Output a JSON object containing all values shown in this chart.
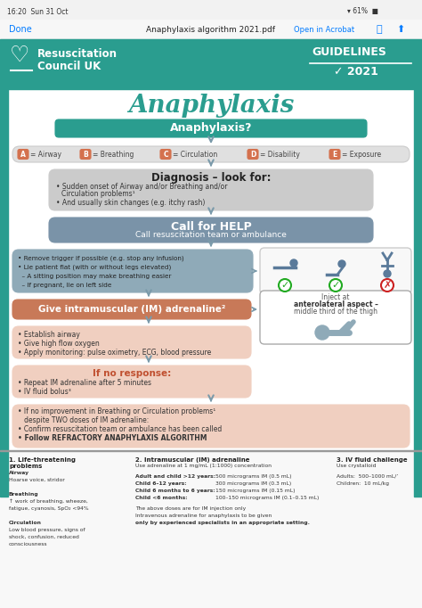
{
  "bg_color": "#ffffff",
  "teal_color": "#2a9d8f",
  "dark_teal": "#1d7a6e",
  "title": "Anaphylaxis",
  "arrow_color": "#7a9aaa",
  "abcde_items": [
    {
      "letter": "A",
      "label": "Airway"
    },
    {
      "letter": "B",
      "label": "Breathing"
    },
    {
      "letter": "C",
      "label": "Circulation"
    },
    {
      "letter": "D",
      "label": "Disability"
    },
    {
      "letter": "E",
      "label": "Exposure"
    }
  ],
  "letter_box_color": "#d4714e",
  "diag_color": "#cccccc",
  "help_color": "#7a93a8",
  "actions_color": "#8faab8",
  "adren_color": "#c87958",
  "post_color": "#f0cfc0",
  "noresp_color": "#f0cfc0",
  "noimprove_color": "#f0cfc0"
}
